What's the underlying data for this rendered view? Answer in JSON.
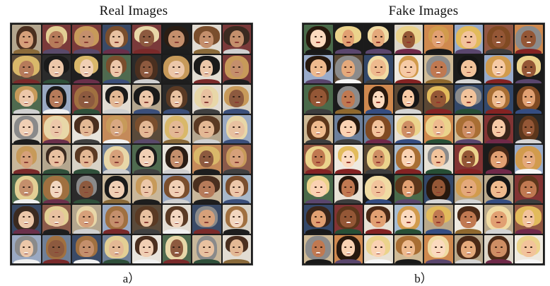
{
  "left_panel": {
    "title": "Real Images",
    "caption": "a）"
  },
  "right_panel": {
    "title": "Fake Images",
    "caption": "b）"
  },
  "grid": {
    "rows": 8,
    "cols": 8
  },
  "palettes": {
    "backgrounds": [
      "#6f7f96",
      "#2b2b2b",
      "#c9b79a",
      "#8b5a4a",
      "#d8d2c6",
      "#3a4a66",
      "#a8b8c8",
      "#5a4a3a",
      "#e2dcd2",
      "#7a3a3a",
      "#4f6a4f",
      "#b4a68e",
      "#202020",
      "#9aa9c2",
      "#c48a5a",
      "#e8e4dc"
    ],
    "skin": [
      "#e8c1a0",
      "#d9a882",
      "#f0cfb4",
      "#c48f6c",
      "#e3b894",
      "#b67b5a",
      "#f2d6bf",
      "#d6a07a",
      "#8d5a3f",
      "#ecc7a9"
    ],
    "hair": [
      "#2a1d14",
      "#4a2f1f",
      "#d9b86a",
      "#7a4e2d",
      "#1a1a1a",
      "#a07040",
      "#e3cf94",
      "#5a3a24",
      "#8a8a8a",
      "#3b2a20",
      "#c79a5a",
      "#e8d7a8"
    ],
    "clothing": [
      "#1e1e1e",
      "#3b4f7a",
      "#7a2a2a",
      "#d0d0d0",
      "#2f4f3a",
      "#5a4a6a",
      "#8a6a3a",
      "#f0f0f0",
      "#404040",
      "#6a2f4a"
    ]
  }
}
